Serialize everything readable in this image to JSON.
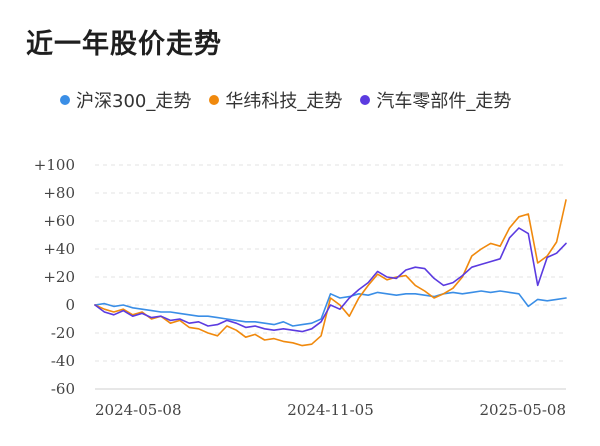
{
  "title": "近一年股价走势",
  "chart_data": {
    "type": "line",
    "ylim": [
      -60,
      100
    ],
    "yticks": [
      100,
      80,
      60,
      40,
      20,
      0,
      -20,
      -40,
      -60
    ],
    "ytick_labels": [
      "+100",
      "+80",
      "+60",
      "+40",
      "+20",
      "0",
      "-20",
      "-40",
      "-60"
    ],
    "xticks": [
      0,
      0.5,
      1
    ],
    "xtick_labels": [
      "2024-05-08",
      "2024-11-05",
      "2025-05-08"
    ],
    "grid": true,
    "legend_position": "top",
    "x": [
      0,
      0.02,
      0.04,
      0.06,
      0.08,
      0.1,
      0.12,
      0.14,
      0.16,
      0.18,
      0.2,
      0.22,
      0.24,
      0.26,
      0.28,
      0.3,
      0.32,
      0.34,
      0.36,
      0.38,
      0.4,
      0.42,
      0.44,
      0.46,
      0.48,
      0.5,
      0.52,
      0.54,
      0.56,
      0.58,
      0.6,
      0.62,
      0.64,
      0.66,
      0.68,
      0.7,
      0.72,
      0.74,
      0.76,
      0.78,
      0.8,
      0.82,
      0.84,
      0.86,
      0.88,
      0.9,
      0.92,
      0.94,
      0.96,
      0.98,
      1.0
    ],
    "series": [
      {
        "name": "沪深300_走势",
        "color": "#3a8ee6",
        "values": [
          0,
          1,
          -1,
          0,
          -2,
          -3,
          -4,
          -5,
          -5,
          -6,
          -7,
          -8,
          -8,
          -9,
          -10,
          -11,
          -12,
          -12,
          -13,
          -14,
          -12,
          -15,
          -14,
          -13,
          -10,
          8,
          5,
          6,
          8,
          7,
          9,
          8,
          7,
          8,
          8,
          7,
          6,
          8,
          9,
          8,
          9,
          10,
          9,
          10,
          9,
          8,
          -1,
          4,
          3,
          4,
          5
        ]
      },
      {
        "name": "华纬科技_走势",
        "color": "#f0890d",
        "values": [
          0,
          -3,
          -5,
          -3,
          -7,
          -5,
          -10,
          -8,
          -13,
          -11,
          -16,
          -17,
          -20,
          -22,
          -15,
          -18,
          -23,
          -21,
          -25,
          -24,
          -26,
          -27,
          -29,
          -28,
          -22,
          5,
          0,
          -8,
          5,
          14,
          22,
          18,
          20,
          21,
          14,
          10,
          5,
          8,
          12,
          20,
          35,
          40,
          44,
          42,
          55,
          63,
          65,
          30,
          35,
          45,
          75
        ]
      },
      {
        "name": "汽车零部件_走势",
        "color": "#5b3be0",
        "values": [
          0,
          -5,
          -7,
          -4,
          -8,
          -6,
          -9,
          -8,
          -11,
          -10,
          -13,
          -12,
          -15,
          -14,
          -11,
          -13,
          -16,
          -15,
          -17,
          -18,
          -17,
          -18,
          -19,
          -17,
          -12,
          0,
          -3,
          5,
          11,
          16,
          24,
          20,
          19,
          25,
          27,
          26,
          19,
          14,
          16,
          21,
          27,
          29,
          31,
          33,
          48,
          55,
          51,
          14,
          34,
          37,
          44
        ]
      }
    ]
  }
}
